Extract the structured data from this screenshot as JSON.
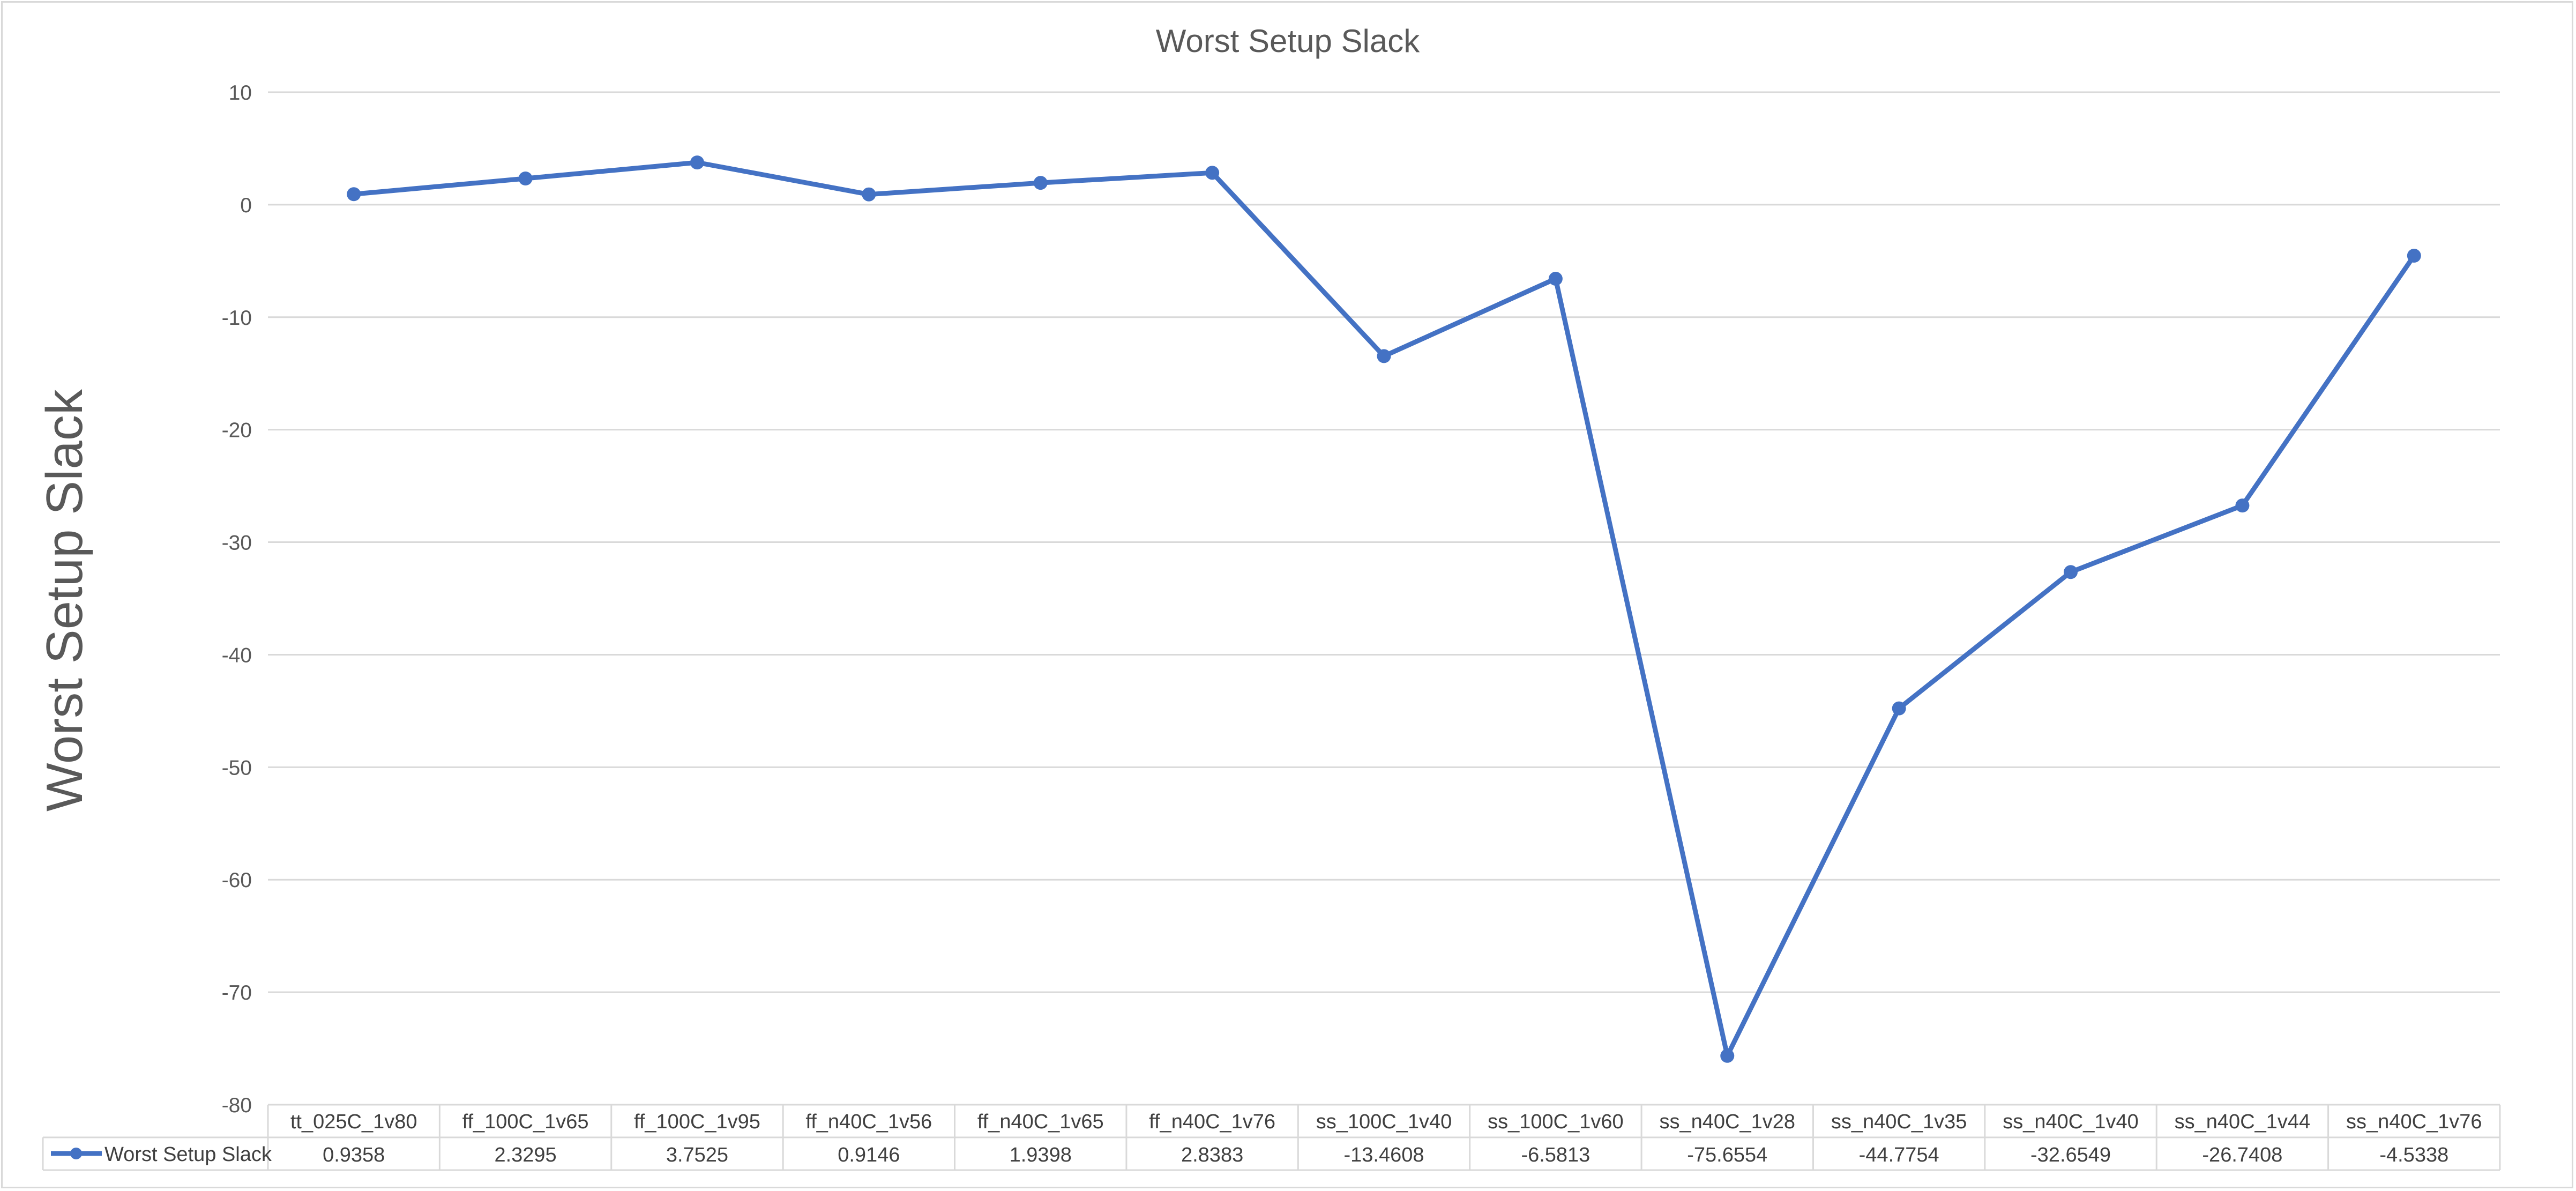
{
  "chart_data": {
    "type": "line",
    "title": "Worst Setup Slack",
    "ylabel": "Worst Setup Slack",
    "xlabel": "",
    "ylim": [
      -80,
      10
    ],
    "ytick_step": 10,
    "grid": true,
    "legend_placement": "data-table-left",
    "categories": [
      "tt_025C_1v80",
      "ff_100C_1v65",
      "ff_100C_1v95",
      "ff_n40C_1v56",
      "ff_n40C_1v65",
      "ff_n40C_1v76",
      "ss_100C_1v40",
      "ss_100C_1v60",
      "ss_n40C_1v28",
      "ss_n40C_1v35",
      "ss_n40C_1v40",
      "ss_n40C_1v44",
      "ss_n40C_1v76"
    ],
    "series": [
      {
        "name": "Worst Setup Slack",
        "color": "#4472c4",
        "values": [
          0.9358,
          2.3295,
          3.7525,
          0.9146,
          1.9398,
          2.8383,
          -13.4608,
          -6.5813,
          -75.6554,
          -44.7754,
          -32.6549,
          -26.7408,
          -4.5338
        ],
        "labels": [
          "0.9358",
          "2.3295",
          "3.7525",
          "0.9146",
          "1.9398",
          "2.8383",
          "-13.4608",
          "-6.5813",
          "-75.6554",
          "-44.7754",
          "-32.6549",
          "-26.7408",
          "-4.5338"
        ]
      }
    ]
  }
}
